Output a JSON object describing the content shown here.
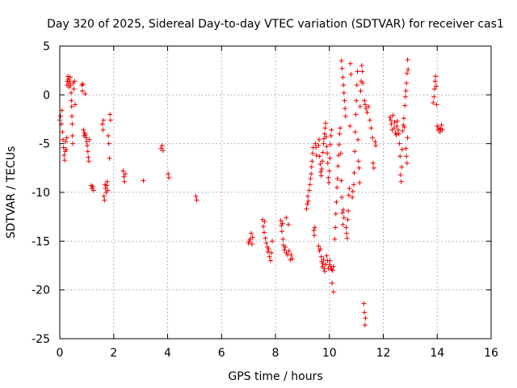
{
  "chart_data": {
    "type": "scatter",
    "title": "Day 320 of 2025, Sidereal Day-to-day VTEC variation (SDTVAR) for receiver cas1",
    "xlabel": "GPS time / hours",
    "ylabel": "SDTVAR / TECUs",
    "xlim": [
      0,
      16
    ],
    "ylim": [
      -25,
      5
    ],
    "xticks": [
      "0",
      "2",
      "4",
      "6",
      "8",
      "10",
      "12",
      "14",
      "16"
    ],
    "yticks": [
      "5",
      "0",
      "-5",
      "-10",
      "-15",
      "-20",
      "-25"
    ],
    "grid": true,
    "marker": "+",
    "color": "#ee0000",
    "series": [
      {
        "name": "SDTVAR",
        "points": [
          [
            0.0,
            -2.6
          ],
          [
            0.03,
            -2.2
          ],
          [
            0.06,
            -3.0
          ],
          [
            0.08,
            -1.6
          ],
          [
            0.1,
            -3.8
          ],
          [
            0.12,
            -4.6
          ],
          [
            0.14,
            -5.4
          ],
          [
            0.16,
            -6.2
          ],
          [
            0.18,
            -6.7
          ],
          [
            0.2,
            -5.8
          ],
          [
            0.22,
            -4.8
          ],
          [
            0.24,
            -5.6
          ],
          [
            0.26,
            -4.4
          ],
          [
            0.27,
            1.0
          ],
          [
            0.28,
            1.4
          ],
          [
            0.3,
            1.9
          ],
          [
            0.32,
            1.6
          ],
          [
            0.33,
            1.2
          ],
          [
            0.35,
            0.8
          ],
          [
            0.37,
            1.4
          ],
          [
            0.39,
            1.8
          ],
          [
            0.4,
            1.0
          ],
          [
            0.42,
            0.2
          ],
          [
            0.43,
            -0.6
          ],
          [
            0.44,
            -1.2
          ],
          [
            0.45,
            -2.2
          ],
          [
            0.46,
            -3.0
          ],
          [
            0.47,
            -4.2
          ],
          [
            0.48,
            -5.0
          ],
          [
            0.5,
            1.2
          ],
          [
            0.52,
            0.6
          ],
          [
            0.55,
            1.4
          ],
          [
            0.57,
            -1.0
          ],
          [
            0.82,
            1.0
          ],
          [
            0.84,
            0.4
          ],
          [
            0.86,
            1.1
          ],
          [
            0.88,
            -3.6
          ],
          [
            0.9,
            -4.2
          ],
          [
            0.92,
            -3.9
          ],
          [
            0.94,
            0.1
          ],
          [
            0.96,
            -4.1
          ],
          [
            0.98,
            -4.4
          ],
          [
            1.0,
            -4.8
          ],
          [
            1.02,
            -5.2
          ],
          [
            1.04,
            -5.8
          ],
          [
            1.06,
            -6.4
          ],
          [
            1.08,
            -6.8
          ],
          [
            1.1,
            -4.6
          ],
          [
            1.17,
            -9.3
          ],
          [
            1.2,
            -9.6
          ],
          [
            1.22,
            -9.4
          ],
          [
            1.25,
            -9.8
          ],
          [
            1.58,
            -3.0
          ],
          [
            1.6,
            -3.6
          ],
          [
            1.62,
            -2.6
          ],
          [
            1.64,
            -10.4
          ],
          [
            1.66,
            -10.8
          ],
          [
            1.68,
            -9.2
          ],
          [
            1.7,
            -9.6
          ],
          [
            1.72,
            -10.0
          ],
          [
            1.74,
            -9.3
          ],
          [
            1.76,
            -8.9
          ],
          [
            1.78,
            -9.8
          ],
          [
            1.8,
            -4.2
          ],
          [
            1.82,
            -5.0
          ],
          [
            1.84,
            -6.5
          ],
          [
            1.86,
            -2.0
          ],
          [
            1.88,
            -2.6
          ],
          [
            2.35,
            -7.8
          ],
          [
            2.38,
            -8.4
          ],
          [
            2.4,
            -8.9
          ],
          [
            2.43,
            -8.1
          ],
          [
            3.1,
            -8.8
          ],
          [
            3.75,
            -5.5
          ],
          [
            3.8,
            -5.2
          ],
          [
            3.83,
            -5.7
          ],
          [
            4.02,
            -8.1
          ],
          [
            4.05,
            -8.5
          ],
          [
            5.05,
            -10.4
          ],
          [
            5.08,
            -10.8
          ],
          [
            7.0,
            -15.2
          ],
          [
            7.03,
            -15.0
          ],
          [
            7.06,
            -14.8
          ],
          [
            7.1,
            -14.2
          ],
          [
            7.13,
            -15.3
          ],
          [
            7.15,
            -14.6
          ],
          [
            7.52,
            -12.8
          ],
          [
            7.55,
            -13.5
          ],
          [
            7.58,
            -14.1
          ],
          [
            7.6,
            -13.0
          ],
          [
            7.63,
            -14.7
          ],
          [
            7.66,
            -15.2
          ],
          [
            7.7,
            -15.6
          ],
          [
            7.72,
            -16.1
          ],
          [
            7.75,
            -15.8
          ],
          [
            7.78,
            -16.6
          ],
          [
            7.82,
            -17.0
          ],
          [
            7.85,
            -16.2
          ],
          [
            7.88,
            -15.0
          ],
          [
            8.2,
            -12.9
          ],
          [
            8.22,
            -13.4
          ],
          [
            8.24,
            -14.0
          ],
          [
            8.26,
            -13.2
          ],
          [
            8.28,
            -14.8
          ],
          [
            8.3,
            -15.4
          ],
          [
            8.33,
            -15.9
          ],
          [
            8.36,
            -15.6
          ],
          [
            8.4,
            -16.2
          ],
          [
            8.45,
            -16.4
          ],
          [
            8.5,
            -16.0
          ],
          [
            8.55,
            -16.9
          ],
          [
            8.58,
            -16.4
          ],
          [
            8.62,
            -16.8
          ],
          [
            8.4,
            -12.6
          ],
          [
            8.48,
            -13.3
          ],
          [
            9.15,
            -11.7
          ],
          [
            9.18,
            -11.2
          ],
          [
            9.2,
            -10.4
          ],
          [
            9.22,
            -10.9
          ],
          [
            9.25,
            -9.8
          ],
          [
            9.28,
            -9.2
          ],
          [
            9.3,
            -8.6
          ],
          [
            9.32,
            -8.1
          ],
          [
            9.34,
            -7.4
          ],
          [
            9.36,
            -6.8
          ],
          [
            9.38,
            -6.0
          ],
          [
            9.4,
            -5.4
          ],
          [
            9.42,
            -13.9
          ],
          [
            9.44,
            -14.4
          ],
          [
            9.46,
            -13.6
          ],
          [
            9.48,
            -5.0
          ],
          [
            9.5,
            -5.4
          ],
          [
            9.52,
            -6.2
          ],
          [
            9.6,
            -15.5
          ],
          [
            9.63,
            -16.0
          ],
          [
            9.66,
            -15.8
          ],
          [
            9.7,
            -16.6
          ],
          [
            9.72,
            -17.1
          ],
          [
            9.74,
            -17.6
          ],
          [
            9.76,
            -17.3
          ],
          [
            9.78,
            -16.9
          ],
          [
            9.8,
            -17.8
          ],
          [
            9.83,
            -18.1
          ],
          [
            9.86,
            -17.4
          ],
          [
            9.9,
            -16.5
          ],
          [
            9.93,
            -17.0
          ],
          [
            9.96,
            -17.8
          ],
          [
            10.0,
            -17.4
          ],
          [
            10.02,
            -17.0
          ],
          [
            10.05,
            -17.6
          ],
          [
            10.08,
            -17.9
          ],
          [
            10.12,
            -18.0
          ],
          [
            10.15,
            -17.6
          ],
          [
            9.6,
            -5.2
          ],
          [
            9.62,
            -4.6
          ],
          [
            9.64,
            -6.3
          ],
          [
            9.66,
            -7.1
          ],
          [
            9.68,
            -7.9
          ],
          [
            9.7,
            -8.3
          ],
          [
            9.72,
            -7.6
          ],
          [
            9.74,
            -6.8
          ],
          [
            9.76,
            -5.9
          ],
          [
            9.78,
            -5.0
          ],
          [
            9.8,
            -4.5
          ],
          [
            9.82,
            -4.0
          ],
          [
            9.84,
            -3.4
          ],
          [
            9.86,
            -2.9
          ],
          [
            9.88,
            -4.3
          ],
          [
            9.9,
            -5.3
          ],
          [
            9.92,
            -6.0
          ],
          [
            9.94,
            -7.0
          ],
          [
            9.96,
            -8.5
          ],
          [
            9.98,
            -9.0
          ],
          [
            10.0,
            -7.8
          ],
          [
            10.02,
            -6.5
          ],
          [
            10.04,
            -5.1
          ],
          [
            10.06,
            -4.2
          ],
          [
            10.08,
            -3.6
          ],
          [
            10.1,
            -19.3
          ],
          [
            10.15,
            -20.2
          ],
          [
            10.2,
            -14.8
          ],
          [
            10.22,
            -13.6
          ],
          [
            10.24,
            -12.2
          ],
          [
            10.26,
            -11.0
          ],
          [
            10.28,
            -9.5
          ],
          [
            10.3,
            -8.6
          ],
          [
            10.32,
            -7.3
          ],
          [
            10.34,
            -6.2
          ],
          [
            10.36,
            -5.1
          ],
          [
            10.38,
            -4.0
          ],
          [
            10.4,
            -3.4
          ],
          [
            10.42,
            -6.0
          ],
          [
            10.44,
            -8.8
          ],
          [
            10.46,
            -10.5
          ],
          [
            10.48,
            -12.1
          ],
          [
            10.5,
            -13.3
          ],
          [
            10.52,
            -11.8
          ],
          [
            10.54,
            -12.6
          ],
          [
            10.45,
            3.5
          ],
          [
            10.47,
            2.7
          ],
          [
            10.5,
            1.8
          ],
          [
            10.52,
            1.0
          ],
          [
            10.54,
            0.2
          ],
          [
            10.56,
            -0.6
          ],
          [
            10.58,
            -1.4
          ],
          [
            10.6,
            -2.2
          ],
          [
            10.62,
            -13.6
          ],
          [
            10.64,
            -14.2
          ],
          [
            10.66,
            -14.7
          ],
          [
            10.68,
            -12.8
          ],
          [
            10.7,
            -11.9
          ],
          [
            10.72,
            -10.3
          ],
          [
            10.74,
            -9.6
          ],
          [
            10.76,
            -3.2
          ],
          [
            10.78,
            3.2
          ],
          [
            10.8,
            2.1
          ],
          [
            10.85,
            -10.5
          ],
          [
            10.87,
            -9.9
          ],
          [
            10.9,
            -9.2
          ],
          [
            10.92,
            -8.0
          ],
          [
            10.94,
            -5.8
          ],
          [
            10.96,
            -3.8
          ],
          [
            10.98,
            -2.0
          ],
          [
            11.0,
            -0.6
          ],
          [
            11.02,
            1.0
          ],
          [
            11.04,
            2.4
          ],
          [
            11.06,
            -4.6
          ],
          [
            11.08,
            -6.8
          ],
          [
            11.1,
            -7.5
          ],
          [
            11.12,
            -9.0
          ],
          [
            11.14,
            -1.2
          ],
          [
            11.16,
            0.4
          ],
          [
            11.18,
            1.4
          ],
          [
            11.2,
            3.0
          ],
          [
            11.22,
            2.4
          ],
          [
            11.24,
            1.2
          ],
          [
            11.28,
            -21.4
          ],
          [
            11.3,
            -22.3
          ],
          [
            11.32,
            -23.6
          ],
          [
            11.34,
            -22.9
          ],
          [
            11.3,
            -0.6
          ],
          [
            11.33,
            -1.0
          ],
          [
            11.36,
            -1.4
          ],
          [
            11.4,
            -1.8
          ],
          [
            11.45,
            -1.2
          ],
          [
            11.5,
            -2.6
          ],
          [
            11.55,
            -3.4
          ],
          [
            11.6,
            -4.4
          ],
          [
            11.62,
            -7.0
          ],
          [
            11.65,
            -7.5
          ],
          [
            11.7,
            -4.8
          ],
          [
            11.72,
            -5.2
          ],
          [
            12.25,
            -2.3
          ],
          [
            12.28,
            -2.6
          ],
          [
            12.3,
            -3.0
          ],
          [
            12.33,
            -3.6
          ],
          [
            12.36,
            -2.1
          ],
          [
            12.4,
            -3.4
          ],
          [
            12.42,
            -2.8
          ],
          [
            12.45,
            -3.9
          ],
          [
            12.48,
            -4.1
          ],
          [
            12.5,
            -3.2
          ],
          [
            12.52,
            -2.7
          ],
          [
            12.55,
            -3.6
          ],
          [
            12.58,
            -4.0
          ],
          [
            12.6,
            -5.0
          ],
          [
            12.62,
            -6.3
          ],
          [
            12.64,
            -8.2
          ],
          [
            12.66,
            -8.9
          ],
          [
            12.68,
            -7.4
          ],
          [
            12.7,
            -5.6
          ],
          [
            12.72,
            -3.7
          ],
          [
            12.74,
            -3.1
          ],
          [
            12.76,
            -2.4
          ],
          [
            12.78,
            -3.3
          ],
          [
            12.8,
            -1.1
          ],
          [
            12.82,
            -0.2
          ],
          [
            12.84,
            0.4
          ],
          [
            12.86,
            1.2
          ],
          [
            12.88,
            2.2
          ],
          [
            12.9,
            3.6
          ],
          [
            12.92,
            2.6
          ],
          [
            12.84,
            -5.5
          ],
          [
            12.86,
            -6.3
          ],
          [
            12.88,
            -7.0
          ],
          [
            12.9,
            -4.4
          ],
          [
            13.85,
            -0.8
          ],
          [
            13.88,
            -0.2
          ],
          [
            13.9,
            0.6
          ],
          [
            13.92,
            1.4
          ],
          [
            13.94,
            1.9
          ],
          [
            13.96,
            0.9
          ],
          [
            13.98,
            -1.0
          ],
          [
            14.0,
            -3.2
          ],
          [
            14.03,
            -3.6
          ],
          [
            14.06,
            -3.4
          ],
          [
            14.1,
            -3.8
          ],
          [
            14.13,
            -3.5
          ],
          [
            14.16,
            -3.1
          ],
          [
            14.19,
            -3.6
          ]
        ]
      }
    ]
  }
}
